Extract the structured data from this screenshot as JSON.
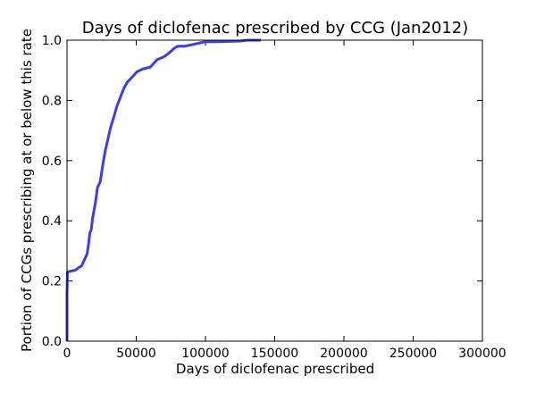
{
  "chart_data": {
    "type": "line",
    "title": "Days of diclofenac prescribed by CCG (Jan2012)",
    "xlabel": "Days of diclofenac prescribed",
    "ylabel": "Portion of CCGs prescribing at or below this rate",
    "xlim": [
      0,
      300000
    ],
    "ylim": [
      0,
      1.0
    ],
    "xticks": [
      0,
      50000,
      100000,
      150000,
      200000,
      250000,
      300000
    ],
    "xtick_labels": [
      "0",
      "50000",
      "100000",
      "150000",
      "200000",
      "250000",
      "300000"
    ],
    "yticks": [
      0,
      0.2,
      0.4,
      0.6,
      0.8,
      1.0
    ],
    "ytick_labels": [
      "0.0",
      "0.2",
      "0.4",
      "0.6",
      "0.8",
      "1.0"
    ],
    "grid": false,
    "series": [
      {
        "color": "#3c3cf0",
        "x": [
          0,
          0,
          300,
          3000,
          6000,
          8500,
          10500,
          12500,
          14500,
          15500,
          16500,
          17500,
          18500,
          20500,
          22000,
          24000,
          26000,
          27500,
          29500,
          31500,
          33500,
          36000,
          38500,
          41000,
          43500,
          46500,
          50500,
          55000,
          60000,
          62000,
          65000,
          70000,
          73000,
          78000,
          80000,
          85000,
          90000,
          100000,
          110000,
          125000,
          130000,
          140000
        ],
        "y": [
          0,
          0.16,
          0.23,
          0.233,
          0.236,
          0.245,
          0.25,
          0.27,
          0.29,
          0.32,
          0.36,
          0.37,
          0.41,
          0.46,
          0.51,
          0.53,
          0.59,
          0.63,
          0.67,
          0.71,
          0.74,
          0.78,
          0.81,
          0.84,
          0.86,
          0.875,
          0.895,
          0.905,
          0.91,
          0.92,
          0.935,
          0.945,
          0.955,
          0.975,
          0.98,
          0.98,
          0.985,
          0.995,
          0.995,
          0.997,
          1.0,
          1.0
        ]
      }
    ]
  }
}
